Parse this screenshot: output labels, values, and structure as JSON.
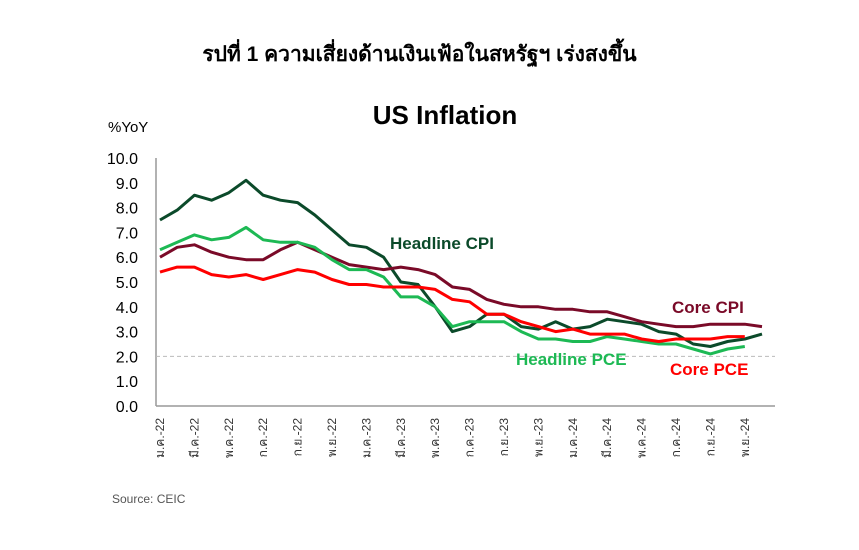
{
  "figure_title": "รปที่ 1 ความเสี่ยงด้านเงินเฟ้อในสหรัฐฯ เร่งสงขึ้น",
  "source": "Source: CEIC",
  "chart_data": {
    "type": "line",
    "title": "US Inflation",
    "ylabel": "%YoY",
    "xlabel": "",
    "ylim": [
      0,
      10
    ],
    "yticks": [
      "0.0",
      "1.0",
      "2.0",
      "3.0",
      "4.0",
      "5.0",
      "6.0",
      "7.0",
      "8.0",
      "9.0",
      "10.0"
    ],
    "reference_line": 2.0,
    "xtick_labels": [
      "ม.ค.-22",
      "มี.ค.-22",
      "พ.ค.-22",
      "ก.ค.-22",
      "ก.ย.-22",
      "พ.ย.-22",
      "ม.ค.-23",
      "มี.ค.-23",
      "พ.ค.-23",
      "ก.ค.-23",
      "ก.ย.-23",
      "พ.ย.-23",
      "ม.ค.-24",
      "มี.ค.-24",
      "พ.ค.-24",
      "ก.ค.-24",
      "ก.ย.-24",
      "พ.ย.-24"
    ],
    "x_start": "Jan 2022",
    "x_frequency": "monthly",
    "series": [
      {
        "name": "Headline CPI",
        "color": "#0b4a2a",
        "values": [
          7.5,
          7.9,
          8.5,
          8.3,
          8.6,
          9.1,
          8.5,
          8.3,
          8.2,
          7.7,
          7.1,
          6.5,
          6.4,
          6.0,
          5.0,
          4.9,
          4.0,
          3.0,
          3.2,
          3.7,
          3.7,
          3.2,
          3.1,
          3.4,
          3.1,
          3.2,
          3.5,
          3.4,
          3.3,
          3.0,
          2.9,
          2.5,
          2.4,
          2.6,
          2.7,
          2.9
        ]
      },
      {
        "name": "Core CPI",
        "color": "#7a0a28",
        "values": [
          6.0,
          6.4,
          6.5,
          6.2,
          6.0,
          5.9,
          5.9,
          6.3,
          6.6,
          6.3,
          6.0,
          5.7,
          5.6,
          5.5,
          5.6,
          5.5,
          5.3,
          4.8,
          4.7,
          4.3,
          4.1,
          4.0,
          4.0,
          3.9,
          3.9,
          3.8,
          3.8,
          3.6,
          3.4,
          3.3,
          3.2,
          3.2,
          3.3,
          3.3,
          3.3,
          3.2
        ]
      },
      {
        "name": "Headline PCE",
        "color": "#1db954",
        "values": [
          6.3,
          6.6,
          6.9,
          6.7,
          6.8,
          7.2,
          6.7,
          6.6,
          6.6,
          6.4,
          5.9,
          5.5,
          5.5,
          5.2,
          4.4,
          4.4,
          4.0,
          3.2,
          3.4,
          3.4,
          3.4,
          3.0,
          2.7,
          2.7,
          2.6,
          2.6,
          2.8,
          2.7,
          2.6,
          2.5,
          2.5,
          2.3,
          2.1,
          2.3,
          2.4
        ]
      },
      {
        "name": "Core PCE",
        "color": "#ff0000",
        "values": [
          5.4,
          5.6,
          5.6,
          5.3,
          5.2,
          5.3,
          5.1,
          5.3,
          5.5,
          5.4,
          5.1,
          4.9,
          4.9,
          4.8,
          4.8,
          4.8,
          4.7,
          4.3,
          4.2,
          3.7,
          3.7,
          3.4,
          3.2,
          3.0,
          3.1,
          2.9,
          2.9,
          2.9,
          2.7,
          2.6,
          2.7,
          2.7,
          2.7,
          2.8,
          2.8
        ]
      }
    ]
  }
}
